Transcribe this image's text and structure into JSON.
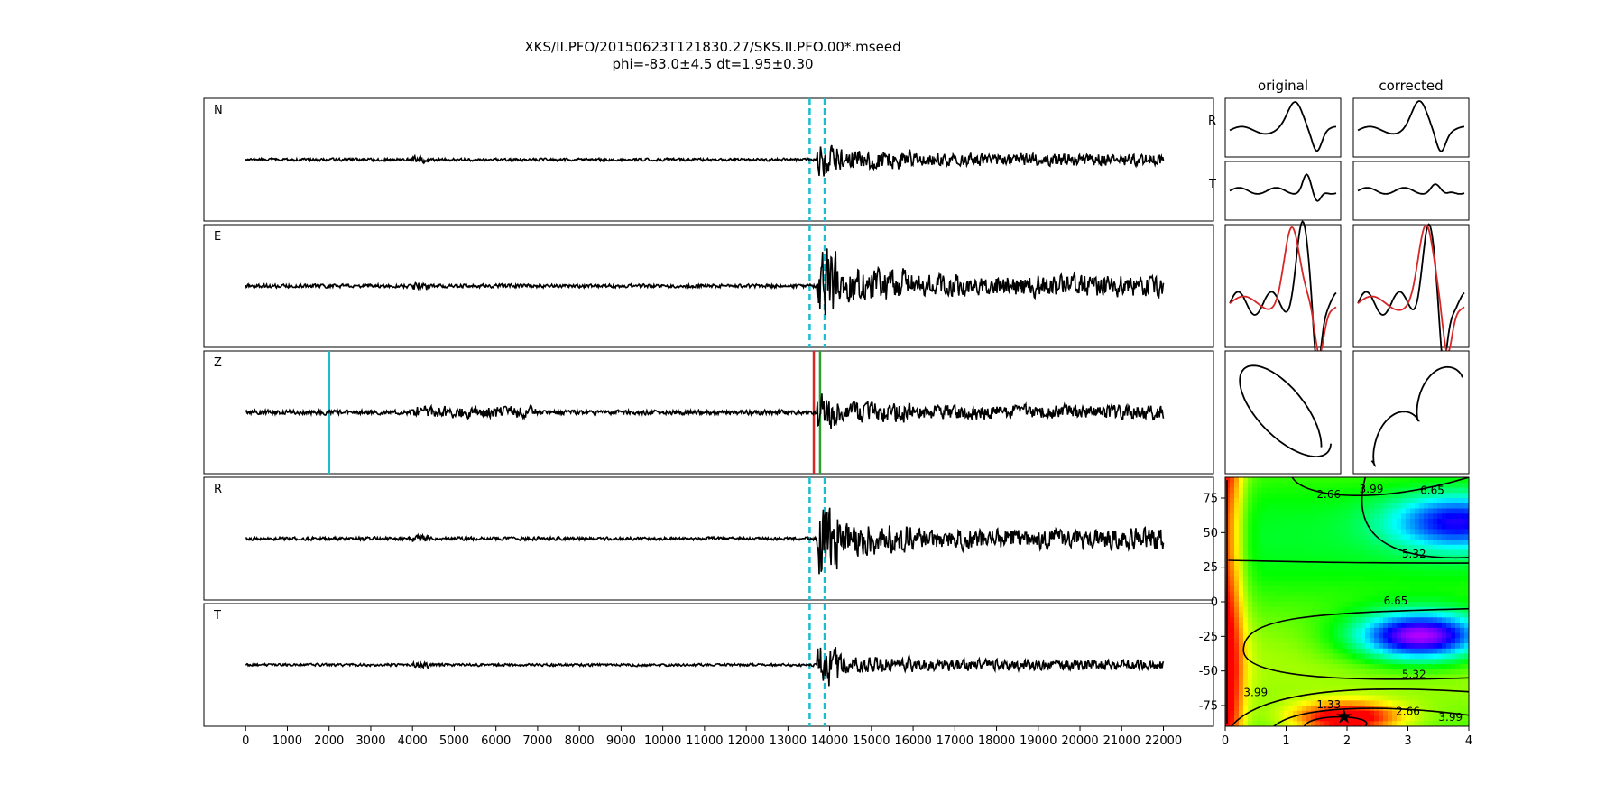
{
  "title": {
    "line1": "XKS/II.PFO/20150623T121830.27/SKS.II.PFO.00*.mseed",
    "line2": "phi=-83.0±4.5 dt=1.95±0.30"
  },
  "chart_data": [
    {
      "type": "line",
      "panel": "seismograms",
      "traces": [
        "N",
        "E",
        "Z",
        "R",
        "T"
      ],
      "x_ticks": [
        0,
        1000,
        2000,
        3000,
        4000,
        5000,
        6000,
        7000,
        8000,
        9000,
        10000,
        11000,
        12000,
        13000,
        14000,
        15000,
        16000,
        17000,
        18000,
        19000,
        20000,
        21000,
        22000
      ],
      "xlim": [
        -1000,
        23200
      ],
      "window_markers": {
        "start": 13520,
        "end": 13880,
        "color": "#17becf",
        "style": "dashed",
        "on_traces": [
          "N",
          "E",
          "R",
          "T"
        ]
      },
      "z_markers": [
        {
          "x": 2000,
          "color": "#17becf"
        },
        {
          "x": 13620,
          "color": "#d62728"
        },
        {
          "x": 13770,
          "color": "#2ca02c"
        }
      ],
      "signal": {
        "x_start": 0,
        "x_end": 22000,
        "onset": 13700
      }
    },
    {
      "type": "line",
      "panel": "particle-waveforms",
      "column_titles": [
        "original",
        "corrected"
      ],
      "row_labels": [
        "R",
        "T"
      ]
    },
    {
      "type": "heatmap",
      "panel": "error-surface",
      "xlim": [
        0,
        4
      ],
      "ylim": [
        -90,
        90
      ],
      "x_ticks": [
        0,
        1,
        2,
        3,
        4
      ],
      "y_ticks": [
        75,
        50,
        25,
        0,
        -25,
        -50,
        -75
      ],
      "contour_labels": [
        "1.33",
        "2.66",
        "3.99",
        "5.32",
        "6.65"
      ],
      "best": {
        "dt": 1.95,
        "phi": -83.0
      }
    }
  ]
}
